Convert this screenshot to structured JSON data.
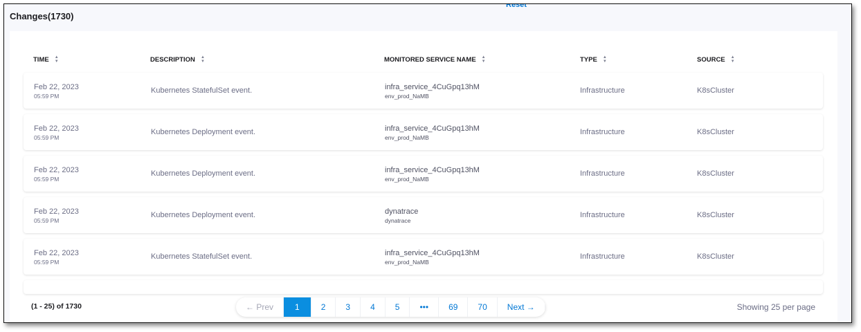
{
  "header": {
    "title": "Changes(1730)",
    "reset_label": "Reset"
  },
  "table": {
    "columns": [
      "TIME",
      "DESCRIPTION",
      "MONITORED SERVICE NAME",
      "TYPE",
      "SOURCE"
    ],
    "rows": [
      {
        "date": "Feb 22, 2023",
        "time": "05:59 PM",
        "description": "Kubernetes StatefulSet event.",
        "service": "infra_service_4CuGpq13hM",
        "env": "env_prod_NaMB",
        "type": "Infrastructure",
        "source": "K8sCluster"
      },
      {
        "date": "Feb 22, 2023",
        "time": "05:59 PM",
        "description": "Kubernetes Deployment event.",
        "service": "infra_service_4CuGpq13hM",
        "env": "env_prod_NaMB",
        "type": "Infrastructure",
        "source": "K8sCluster"
      },
      {
        "date": "Feb 22, 2023",
        "time": "05:59 PM",
        "description": "Kubernetes Deployment event.",
        "service": "infra_service_4CuGpq13hM",
        "env": "env_prod_NaMB",
        "type": "Infrastructure",
        "source": "K8sCluster"
      },
      {
        "date": "Feb 22, 2023",
        "time": "05:59 PM",
        "description": "Kubernetes Deployment event.",
        "service": "dynatrace",
        "env": "dynatrace",
        "type": "Infrastructure",
        "source": "K8sCluster"
      },
      {
        "date": "Feb 22, 2023",
        "time": "05:59 PM",
        "description": "Kubernetes StatefulSet event.",
        "service": "infra_service_4CuGpq13hM",
        "env": "env_prod_NaMB",
        "type": "Infrastructure",
        "source": "K8sCluster"
      }
    ]
  },
  "pagination": {
    "range": "(1 - 25) of 1730",
    "prev": "← Prev",
    "pages": [
      "1",
      "2",
      "3",
      "4",
      "5",
      "•••",
      "69",
      "70"
    ],
    "active": "1",
    "next": "Next →",
    "per_page": "Showing 25 per page"
  }
}
